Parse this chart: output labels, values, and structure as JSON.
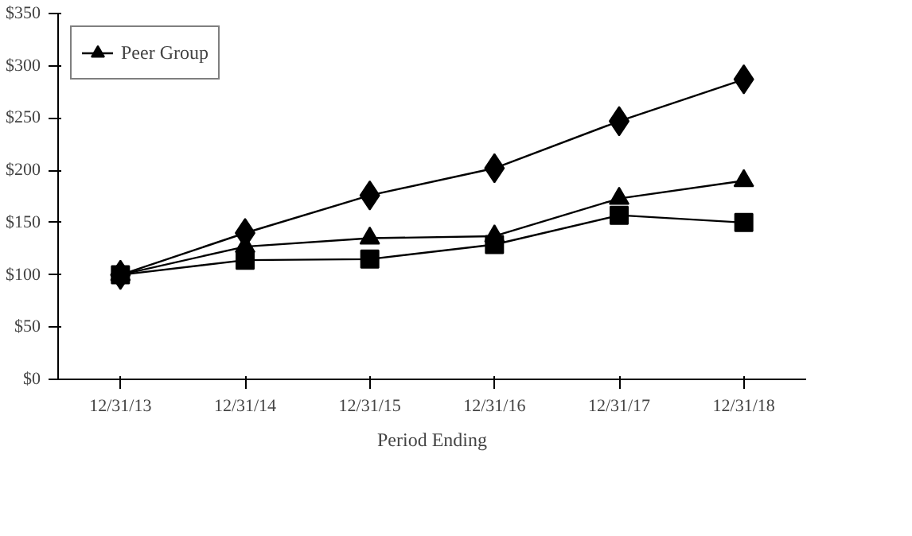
{
  "chart_data": {
    "type": "line",
    "xlabel": "Period Ending",
    "categories": [
      "12/31/13",
      "12/31/14",
      "12/31/15",
      "12/31/16",
      "12/31/17",
      "12/31/18"
    ],
    "ylim": [
      0,
      350
    ],
    "yticks": [
      {
        "value": 0,
        "label": "$0"
      },
      {
        "value": 50,
        "label": "$50"
      },
      {
        "value": 100,
        "label": "$100"
      },
      {
        "value": 150,
        "label": "$150"
      },
      {
        "value": 200,
        "label": "$200"
      },
      {
        "value": 250,
        "label": "$250"
      },
      {
        "value": 300,
        "label": "$300"
      },
      {
        "value": 350,
        "label": "$350"
      }
    ],
    "grid": false,
    "legend": "top left",
    "line_style": "solid",
    "series": [
      {
        "color": "#000000",
        "marker": "diamond",
        "values": [
          100,
          140,
          176,
          202,
          247,
          287
        ]
      },
      {
        "color": "#000000",
        "marker": "square",
        "values": [
          100,
          114,
          115,
          129,
          157,
          150
        ]
      },
      {
        "name": "Peer Group",
        "color": "#000000",
        "marker": "triangle",
        "values": [
          100,
          127,
          135,
          137,
          173,
          190
        ]
      }
    ]
  }
}
